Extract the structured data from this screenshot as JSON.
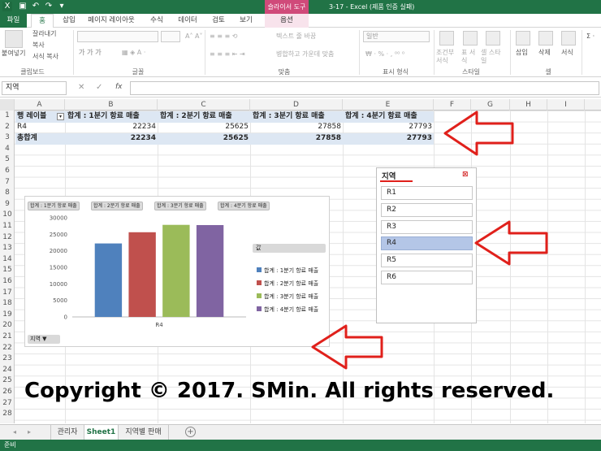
{
  "titlebar": {
    "app_title": "3-17 - Excel (제품 인증 실패)",
    "context_title": "슬라이서 도구"
  },
  "tabs": [
    "파일",
    "홈",
    "삽입",
    "페이지 레이아웃",
    "수식",
    "데이터",
    "검토",
    "보기",
    "옵션"
  ],
  "ribbon": {
    "clipboard": {
      "paste": "붙여넣기",
      "cut": "잘라내기",
      "copy": "복사",
      "format_painter": "서식 복사",
      "label": "클립보드"
    },
    "font": {
      "label": "글꼴"
    },
    "alignment": {
      "wrap": "텍스트 줄 바꿈",
      "merge": "병합하고 가운데 맞춤",
      "label": "맞춤"
    },
    "number": {
      "format": "일반",
      "label": "표시 형식"
    },
    "styles": {
      "conditional": "조건부 서식",
      "table": "표 서식",
      "cell": "셀 스타일",
      "label": "스타일"
    },
    "cells": {
      "insert": "삽입",
      "delete": "삭제",
      "format": "서식",
      "label": "셀"
    }
  },
  "formula_bar": {
    "name_box": "지역",
    "fx": "fx"
  },
  "columns": [
    "A",
    "B",
    "C",
    "D",
    "E",
    "F",
    "G",
    "H",
    "I"
  ],
  "rows": [
    "1",
    "2",
    "3",
    "4",
    "5",
    "6",
    "7",
    "8",
    "9",
    "10",
    "11",
    "12",
    "13",
    "14",
    "15",
    "16",
    "17",
    "18",
    "19",
    "20",
    "21",
    "22",
    "23",
    "24",
    "25",
    "26",
    "27",
    "28"
  ],
  "pivot": {
    "row_label": "행 레이블",
    "headers": [
      "합계 : 1분기 항료 매출",
      "합계 : 2분기 항료 매출",
      "합계 : 3분기 항료 매출",
      "합계 : 4분기 항료 매출"
    ],
    "row_name": "R4",
    "row_values": [
      "22234",
      "25625",
      "27858",
      "27793"
    ],
    "total_label": "총합계",
    "total_values": [
      "22234",
      "25625",
      "27858",
      "27793"
    ]
  },
  "slicer": {
    "title": "지역",
    "items": [
      "R1",
      "R2",
      "R3",
      "R4",
      "R5",
      "R6"
    ],
    "selected": "R4"
  },
  "chart_data": {
    "type": "bar",
    "categories": [
      "R4"
    ],
    "series": [
      {
        "name": "합계 : 1분기 항료 매출",
        "values": [
          22234
        ],
        "color": "#4f81bd"
      },
      {
        "name": "합계 : 2분기 항료 매출",
        "values": [
          25625
        ],
        "color": "#c0504d"
      },
      {
        "name": "합계 : 3분기 항료 매출",
        "values": [
          27858
        ],
        "color": "#9bbb59"
      },
      {
        "name": "합계 : 4분기 항료 매출",
        "values": [
          27793
        ],
        "color": "#8064a2"
      }
    ],
    "yticks": [
      "30000",
      "25000",
      "20000",
      "15000",
      "10000",
      "5000",
      "0"
    ],
    "ylim": [
      0,
      30000
    ],
    "legend_title": "값",
    "axis_field_button": "지역"
  },
  "copyright": "Copyright © 2017. SMin. All rights reserved.",
  "sheet_tabs": [
    "관리자",
    "Sheet1",
    "지역별 판매"
  ],
  "status": "준비",
  "colors": {
    "excel_green": "#217346",
    "arrow_red": "#e0201b",
    "pivot_blue": "#dde7f3"
  }
}
